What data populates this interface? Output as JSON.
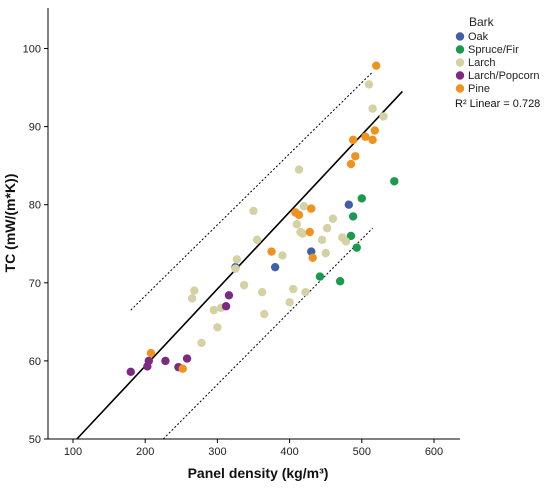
{
  "chart_data": {
    "type": "scatter",
    "xlabel": "Panel density (kg/m³)",
    "ylabel": "TC (mW/(m*K))",
    "xlim": [
      50,
      640
    ],
    "ylim": [
      50,
      104
    ],
    "xticks": [
      "100",
      "200",
      "300",
      "400",
      "500",
      "600"
    ],
    "yticks": [
      "50",
      "60",
      "70",
      "80",
      "90",
      "100"
    ],
    "grid": false,
    "legend": {
      "title": "Bark",
      "position": "top-right",
      "fit_label": "R² Linear = 0.728"
    },
    "fit_line": {
      "slope": 0.0987,
      "intercept": 39.6
    },
    "interval_lines": {
      "upper": {
        "x": [
          180,
          515
        ],
        "y": [
          66.5,
          97.0
        ]
      },
      "lower": {
        "x": [
          225,
          515
        ],
        "y": [
          50.0,
          77.0
        ]
      }
    },
    "series": [
      {
        "name": "Oak",
        "color": "#3f5fa8",
        "points": [
          [
            325,
            72.0
          ],
          [
            380,
            72.0
          ],
          [
            430,
            74.0
          ],
          [
            482,
            80.0
          ]
        ]
      },
      {
        "name": "Spruce/Fir",
        "color": "#1a9a4c",
        "points": [
          [
            442,
            70.8
          ],
          [
            470,
            70.2
          ],
          [
            485,
            76.0
          ],
          [
            488,
            78.5
          ],
          [
            493,
            74.5
          ],
          [
            500,
            80.8
          ],
          [
            545,
            83.0
          ]
        ]
      },
      {
        "name": "Larch",
        "color": "#d4d1a3",
        "points": [
          [
            265,
            68.0
          ],
          [
            268,
            69.0
          ],
          [
            278,
            62.3
          ],
          [
            295,
            66.5
          ],
          [
            300,
            64.3
          ],
          [
            305,
            66.8
          ],
          [
            325,
            71.8
          ],
          [
            327,
            73.0
          ],
          [
            337,
            69.7
          ],
          [
            350,
            79.2
          ],
          [
            355,
            75.5
          ],
          [
            362,
            68.8
          ],
          [
            365,
            66.0
          ],
          [
            390,
            73.5
          ],
          [
            400,
            67.5
          ],
          [
            405,
            69.2
          ],
          [
            410,
            77.5
          ],
          [
            413,
            84.5
          ],
          [
            415,
            76.5
          ],
          [
            418,
            76.3
          ],
          [
            420,
            79.8
          ],
          [
            422,
            68.8
          ],
          [
            430,
            79.5
          ],
          [
            445,
            75.5
          ],
          [
            450,
            73.8
          ],
          [
            452,
            77.0
          ],
          [
            460,
            78.2
          ],
          [
            473,
            75.8
          ],
          [
            478,
            75.3
          ],
          [
            510,
            95.4
          ],
          [
            515,
            92.3
          ],
          [
            530,
            91.3
          ]
        ]
      },
      {
        "name": "Larch/Popcorn",
        "color": "#7c2a82",
        "points": [
          [
            180,
            58.6
          ],
          [
            203,
            59.3
          ],
          [
            205,
            60.0
          ],
          [
            228,
            60.0
          ],
          [
            246,
            59.2
          ],
          [
            258,
            60.3
          ],
          [
            312,
            67.0
          ],
          [
            316,
            68.4
          ]
        ]
      },
      {
        "name": "Pine",
        "color": "#f0931e",
        "points": [
          [
            208,
            61.0
          ],
          [
            252,
            59.0
          ],
          [
            375,
            74.0
          ],
          [
            408,
            79.0
          ],
          [
            413,
            78.7
          ],
          [
            428,
            76.5
          ],
          [
            430,
            79.5
          ],
          [
            432,
            73.2
          ],
          [
            485,
            85.2
          ],
          [
            488,
            88.3
          ],
          [
            491,
            86.2
          ],
          [
            505,
            88.7
          ],
          [
            515,
            88.3
          ],
          [
            518,
            89.5
          ],
          [
            520,
            97.8
          ]
        ]
      }
    ]
  }
}
